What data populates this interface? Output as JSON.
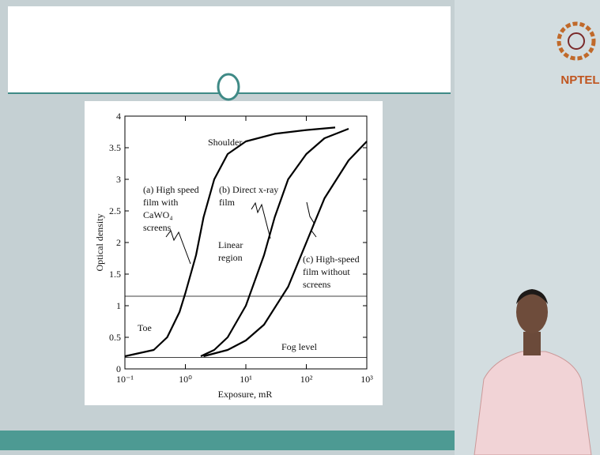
{
  "chart_data": {
    "type": "line",
    "xlabel": "Exposure, mR",
    "ylabel": "Optical density",
    "xscale": "log",
    "xlim": [
      0.1,
      1000
    ],
    "ylim": [
      0,
      4
    ],
    "xticks": [
      {
        "value": 0.1,
        "label": "10⁻¹"
      },
      {
        "value": 1,
        "label": "10⁰"
      },
      {
        "value": 10,
        "label": "10¹"
      },
      {
        "value": 100,
        "label": "10²"
      },
      {
        "value": 1000,
        "label": "10³"
      }
    ],
    "yticks": [
      0,
      0.5,
      1,
      1.5,
      2,
      2.5,
      3,
      3.5,
      4
    ],
    "color": "#000000",
    "series": [
      {
        "x": [
          0.1,
          0.3,
          0.5,
          0.8,
          1,
          1.5,
          2,
          3,
          5,
          10,
          30,
          100,
          300
        ],
        "values": [
          0.2,
          0.3,
          0.5,
          0.9,
          1.2,
          1.8,
          2.4,
          3.0,
          3.4,
          3.6,
          3.72,
          3.78,
          3.82
        ]
      },
      {
        "x": [
          1.8,
          3,
          5,
          10,
          20,
          30,
          50,
          100,
          200,
          500
        ],
        "values": [
          0.2,
          0.3,
          0.5,
          1.0,
          1.8,
          2.4,
          3.0,
          3.4,
          3.65,
          3.8
        ]
      },
      {
        "x": [
          2,
          5,
          10,
          20,
          50,
          100,
          200,
          500,
          1000
        ],
        "values": [
          0.2,
          0.3,
          0.45,
          0.7,
          1.3,
          2.0,
          2.7,
          3.3,
          3.6
        ]
      }
    ],
    "reference_lines": [
      1.15,
      0.18
    ],
    "annotations": [
      "Shoulder",
      "(a) High speed",
      "film with",
      "CaWO₄",
      "screens",
      "(b) Direct x-ray",
      "film",
      "Linear",
      "region",
      "(c) High-speed",
      "film without",
      "screens",
      "Toe",
      "Fog level"
    ]
  },
  "logo": {
    "text": "NPTEL"
  }
}
